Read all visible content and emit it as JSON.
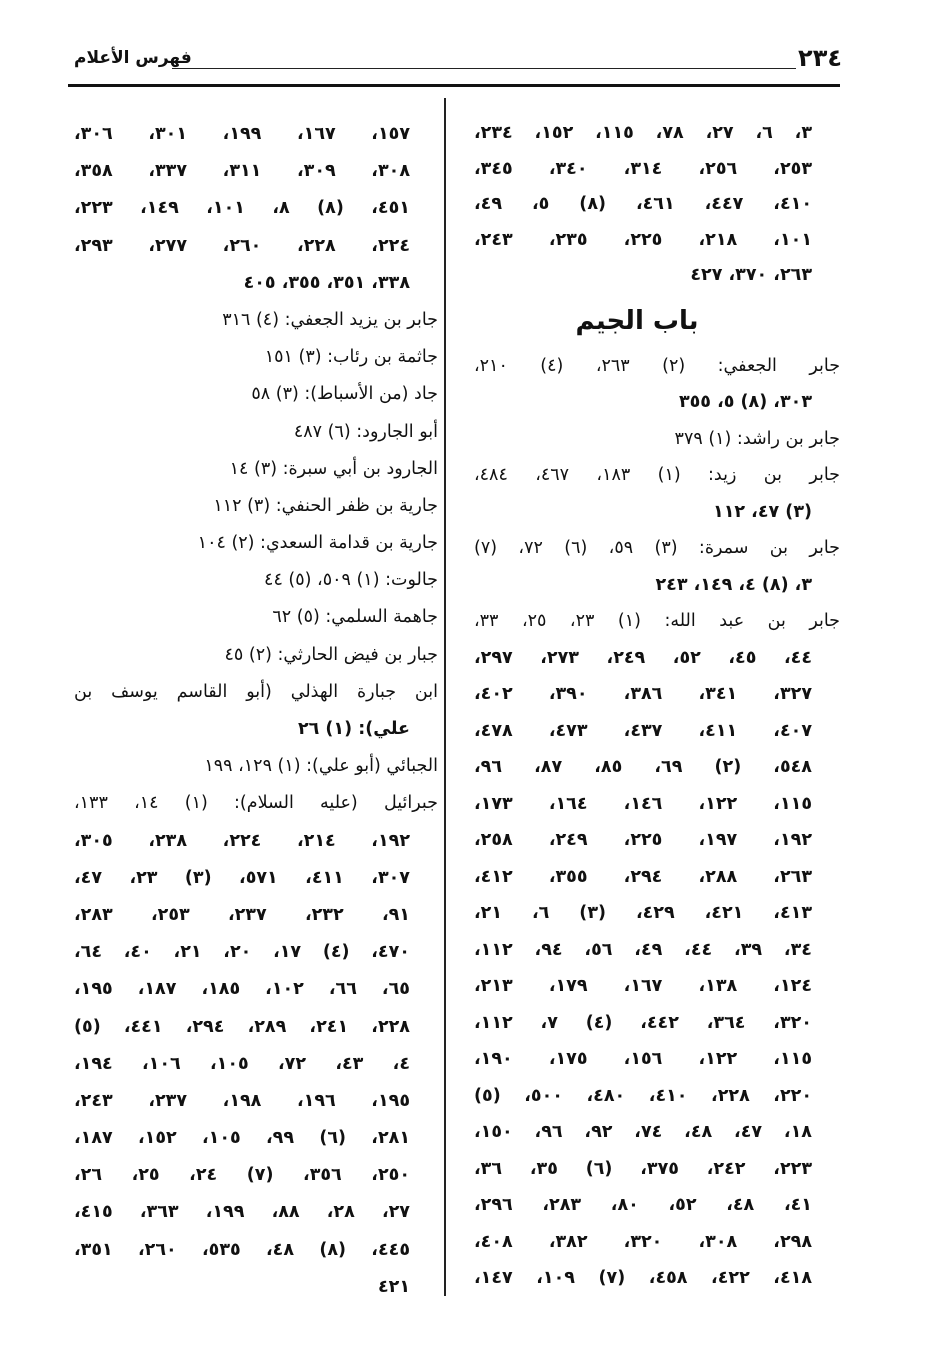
{
  "header": {
    "page_number": "٢٣٤",
    "title": "فهرس الأعلام"
  },
  "columns": {
    "right_top": [
      "٣، ٦، ٢٧، ٧٨، ١١٥، ١٥٢، ٢٣٤،",
      "٢٥٣، ٢٥٦، ٣١٤، ٣٤٠، ٣٤٥،",
      "٤١٠، ٤٤٧، ٤٦١، (٨) ٥، ٤٩،",
      "١٠١، ٢١٨، ٢٢٥، ٢٣٥، ٢٤٣،",
      "٢٦٣، ٣٧٠، ٤٢٧"
    ],
    "section_heading": "باب الجيم",
    "right_bottom": [
      "جابر الجعفي: (٢) ٢٦٣، (٤) ٢١٠،",
      "٣٠٣، (٨) ٥، ٣٥٥",
      "جابر بن راشد: (١) ٣٧٩",
      "جابر بن زيد: (١) ١٨٣، ٤٦٧، ٤٨٤،",
      "(٣) ٤٧، ١١٢",
      "جابر بن سمرة: (٣) ٥٩، (٦) ٧٢، (٧)",
      "٣، (٨) ٤، ١٤٩، ٢٤٣",
      "جابر بن عبد الله: (١) ٢٣، ٢٥، ٣٣،",
      "٤٤، ٤٥، ٥٢، ٢٤٩، ٢٧٣، ٢٩٧،",
      "٣٢٧، ٣٤١، ٣٨٦، ٣٩٠، ٤٠٢،",
      "٤٠٧، ٤١١، ٤٣٧، ٤٧٣، ٤٧٨،",
      "٥٤٨، (٢) ٦٩، ٨٥، ٨٧، ٩٦،",
      "١١٥، ١٢٢، ١٤٦، ١٦٤، ١٧٣،",
      "١٩٢، ١٩٧، ٢٢٥، ٢٤٩، ٢٥٨،",
      "٢٦٣، ٢٨٨، ٢٩٤، ٣٥٥، ٤١٢،",
      "٤١٣، ٤٢١، ٤٢٩، (٣) ٦، ٢١،",
      "٣٤، ٣٩، ٤٤، ٤٩، ٥٦، ٩٤، ١١٢،",
      "١٢٤، ١٣٨، ١٦٧، ١٧٩، ٢١٣،",
      "٣٢٠، ٣٦٤، ٤٤٢، (٤) ٧، ١١٢،",
      "١١٥، ١٢٢، ١٥٦، ١٧٥، ١٩٠،",
      "٢٢٠، ٢٢٨، ٤١٠، ٤٨٠، ٥٠٠، (٥)",
      "١٨، ٤٧، ٤٨، ٧٤، ٩٢، ٩٦، ١٥٠،",
      "٢٢٣، ٢٤٢، ٣٧٥، (٦) ٣٥، ٣٦،",
      "٤١، ٤٨، ٥٢، ٨٠، ٢٨٣، ٢٩٦،",
      "٢٩٨، ٣٠٨، ٣٢٠، ٣٨٢، ٤٠٨،",
      "٤١٨، ٤٢٢، ٤٥٨، (٧) ١٠٩، ١٤٧،"
    ],
    "left": [
      "١٥٧، ١٦٧، ١٩٩، ٣٠١، ٣٠٦،",
      "٣٠٨، ٣٠٩، ٣١١، ٣٣٧، ٣٥٨،",
      "٤٥١، (٨) ٨، ١٠١، ١٤٩، ٢٢٣،",
      "٢٢٤، ٢٢٨، ٢٦٠، ٢٧٧، ٢٩٣،",
      "٣٣٨، ٣٥١، ٣٥٥، ٤٠٥",
      "جابر بن يزيد الجعفي: (٤) ٣١٦",
      "جاثمة بن رئاب: (٣) ١٥١",
      "جاد (من الأسباط): (٣) ٥٨",
      "أبو الجارود: (٦) ٤٨٧",
      "الجارود بن أبي سبرة: (٣) ١٤",
      "جارية بن ظفر الحنفي: (٣) ١١٢",
      "جارية بن قدامة السعدي: (٢) ١٠٤",
      "جالوت: (١) ٥٠٩، (٥) ٤٤",
      "جاهمة السلمي: (٥) ٦٢",
      "جبار بن فيض الحارثي: (٢) ٤٥",
      "ابن جبارة الهذلي (أبو القاسم يوسف بن",
      "علي): (١) ٢٦",
      "الجبائي (أبو علي): (١) ١٢٩، ١٩٩",
      "جبرائيل (عليه السلام): (١) ١٤، ١٣٣،",
      "١٩٢، ٢١٤، ٢٢٤، ٢٣٨، ٣٠٥،",
      "٣٠٧، ٤١١، ٥٧١، (٣) ٢٣، ٤٧،",
      "٩١، ٢٣٢، ٢٣٧، ٢٥٣، ٢٨٣،",
      "٤٧٠، (٤) ١٧، ٢٠، ٢١، ٤٠، ٦٤،",
      "٦٥، ٦٦، ١٠٢، ١٨٥، ١٨٧، ١٩٥،",
      "٢٢٨، ٢٤١، ٢٨٩، ٢٩٤، ٤٤١، (٥)",
      "٤، ٤٣، ٧٢، ١٠٥، ١٠٦، ١٩٤،",
      "١٩٥، ١٩٦، ١٩٨، ٢٣٧، ٢٤٣،",
      "٢٨١، (٦) ٩٩، ١٠٥، ١٥٢، ١٨٧،",
      "٢٥٠، ٣٥٦، (٧) ٢٤، ٢٥، ٢٦،",
      "٢٧، ٢٨، ٨٨، ١٩٩، ٣٦٣، ٤١٥،",
      "٤٤٥، (٨) ٤٨، ٥٣٥، ٢٦٠، ٣٥١،",
      "٤٢١"
    ]
  }
}
